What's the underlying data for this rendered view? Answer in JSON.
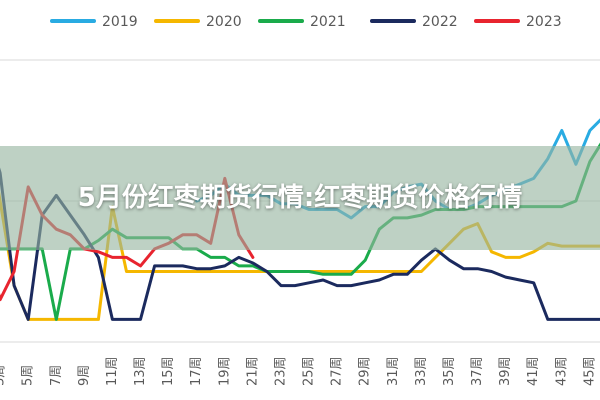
{
  "headline": "5月份红枣期货行情:红枣期货价格行情",
  "chart_data": {
    "type": "line",
    "title": "",
    "xlabel": "",
    "ylabel": "",
    "grid": "horizontal",
    "legend_position": "top",
    "x": [
      "1周",
      "2周",
      "3周",
      "4周",
      "5周",
      "6周",
      "7周",
      "8周",
      "9周",
      "10周",
      "11周",
      "12周",
      "13周",
      "14周",
      "15周",
      "16周",
      "17周",
      "18周",
      "19周",
      "20周",
      "21周",
      "22周",
      "23周",
      "24周",
      "25周",
      "26周",
      "27周",
      "28周",
      "29周",
      "30周",
      "31周",
      "32周",
      "33周",
      "34周",
      "35周",
      "36周",
      "37周",
      "38周",
      "39周",
      "40周",
      "41周",
      "42周",
      "43周",
      "44周",
      "45周",
      "46周",
      "47周"
    ],
    "x_tick_labels": [
      "3周",
      "5周",
      "7周",
      "9周",
      "11周",
      "13周",
      "15周",
      "17周",
      "19周",
      "21周",
      "23周",
      "25周",
      "27周",
      "29周",
      "31周",
      "33周",
      "35周",
      "37周",
      "39周",
      "41周",
      "43周",
      "45周",
      "47周"
    ],
    "ylim": [
      0,
      100
    ],
    "series": [
      {
        "name": "2019",
        "color": "#29abe2",
        "values": [
          null,
          null,
          null,
          null,
          null,
          null,
          null,
          null,
          null,
          null,
          null,
          null,
          null,
          null,
          null,
          null,
          50,
          52,
          56,
          52,
          52,
          52,
          49,
          49,
          47,
          47,
          47,
          44,
          48,
          48,
          53,
          55,
          56,
          50,
          47,
          47,
          49,
          52,
          54,
          56,
          58,
          65,
          75,
          63,
          75,
          80,
          82
        ]
      },
      {
        "name": "2020",
        "color": "#f5b700",
        "values": [
          92,
          80,
          50,
          20,
          8,
          8,
          8,
          8,
          8,
          8,
          48,
          25,
          25,
          25,
          25,
          25,
          25,
          25,
          25,
          25,
          25,
          25,
          25,
          25,
          25,
          25,
          25,
          25,
          25,
          25,
          25,
          25,
          25,
          30,
          35,
          40,
          42,
          32,
          30,
          30,
          32,
          35,
          34,
          34,
          34,
          34,
          34
        ]
      },
      {
        "name": "2021",
        "color": "#1aab4b",
        "values": [
          33,
          33,
          33,
          33,
          33,
          33,
          8,
          33,
          33,
          36,
          40,
          37,
          37,
          37,
          37,
          33,
          33,
          30,
          30,
          27,
          27,
          25,
          25,
          25,
          25,
          24,
          24,
          24,
          29,
          40,
          44,
          44,
          45,
          47,
          47,
          47,
          48,
          48,
          48,
          48,
          48,
          48,
          48,
          50,
          64,
          72,
          80
        ]
      },
      {
        "name": "2022",
        "color": "#1b2a5e",
        "values": [
          70,
          76,
          60,
          20,
          8,
          45,
          52,
          45,
          38,
          30,
          8,
          8,
          8,
          27,
          27,
          27,
          26,
          26,
          27,
          30,
          28,
          25,
          20,
          20,
          21,
          22,
          20,
          20,
          21,
          22,
          24,
          24,
          29,
          33,
          29,
          26,
          26,
          25,
          23,
          22,
          21,
          8,
          8,
          8,
          8,
          8,
          8
        ]
      },
      {
        "name": "2023",
        "color": "#e8242f",
        "values": [
          50,
          35,
          15,
          25,
          55,
          45,
          40,
          38,
          33,
          32,
          30,
          30,
          27,
          33,
          35,
          38,
          38,
          35,
          58,
          38,
          30,
          null,
          null,
          null,
          null,
          null,
          null,
          null,
          null,
          null,
          null,
          null,
          null,
          null,
          null,
          null,
          null,
          null,
          null,
          null,
          null,
          null,
          null,
          null,
          null,
          null,
          null
        ]
      }
    ]
  }
}
